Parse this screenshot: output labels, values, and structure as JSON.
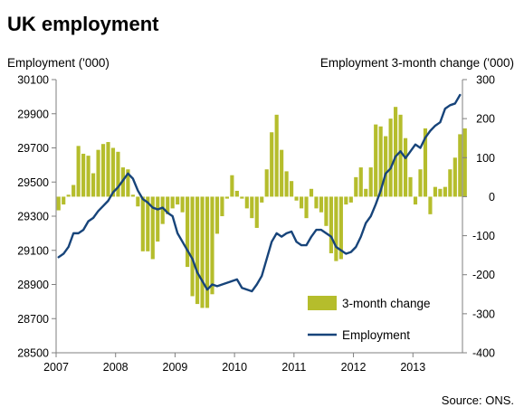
{
  "title": "UK employment",
  "source": "Source: ONS.",
  "colors": {
    "bar": "#b5bd2c",
    "line": "#17447a",
    "axis": "#7f7f7f"
  },
  "chart_data": {
    "type": "bar+line",
    "title": "UK employment",
    "ylabel_left": "Employment ('000)",
    "ylabel_right": "Employment 3-month change ('000)",
    "ylim_left": [
      28500,
      30100
    ],
    "ylim_right": [
      -400,
      300
    ],
    "yticks_left": [
      30100,
      29900,
      29700,
      29500,
      29300,
      29100,
      28900,
      28700,
      28500
    ],
    "yticks_right": [
      300,
      200,
      100,
      0,
      -100,
      -200,
      -300,
      -400
    ],
    "xlim": [
      2007,
      2013.833
    ],
    "xticks": [
      2007,
      2008,
      2009,
      2010,
      2011,
      2012,
      2013
    ],
    "xtick_labels": [
      "2007",
      "2008",
      "2009",
      "2010",
      "2011",
      "2012",
      "2013"
    ],
    "grid": false,
    "legend_position": "bottom-right",
    "start": "2007-01",
    "series": [
      {
        "name": "3-month change",
        "type": "bar",
        "axis": "right",
        "values": [
          -35,
          -20,
          5,
          30,
          130,
          110,
          105,
          60,
          120,
          135,
          140,
          125,
          115,
          75,
          70,
          5,
          -25,
          -140,
          -140,
          -160,
          -115,
          -70,
          -45,
          -30,
          -20,
          -40,
          -180,
          -255,
          -275,
          -285,
          -285,
          -250,
          -95,
          -50,
          -5,
          55,
          15,
          -5,
          -30,
          -55,
          -80,
          -15,
          70,
          165,
          210,
          120,
          65,
          40,
          -10,
          -30,
          -55,
          20,
          -30,
          -40,
          -75,
          -145,
          -165,
          -160,
          -20,
          -15,
          50,
          75,
          20,
          75,
          185,
          180,
          155,
          200,
          230,
          210,
          150,
          50,
          -20,
          70,
          175,
          -45,
          25,
          20,
          25,
          70,
          100,
          160,
          175
        ],
        "notes": "monthly bars, one value per month from Jan 2007 to Nov 2013"
      },
      {
        "name": "Employment",
        "type": "line",
        "axis": "left",
        "values": [
          29060,
          29080,
          29120,
          29200,
          29200,
          29220,
          29270,
          29290,
          29330,
          29360,
          29390,
          29440,
          29470,
          29510,
          29550,
          29520,
          29450,
          29400,
          29380,
          29350,
          29340,
          29350,
          29320,
          29300,
          29200,
          29150,
          29100,
          29050,
          28970,
          28920,
          28870,
          28900,
          28890,
          28900,
          28910,
          28920,
          28930,
          28880,
          28870,
          28860,
          28900,
          28950,
          29050,
          29150,
          29200,
          29180,
          29200,
          29210,
          29150,
          29130,
          29130,
          29180,
          29220,
          29220,
          29200,
          29180,
          29120,
          29100,
          29080,
          29090,
          29120,
          29180,
          29260,
          29300,
          29370,
          29450,
          29550,
          29580,
          29650,
          29680,
          29640,
          29680,
          29720,
          29700,
          29760,
          29800,
          29830,
          29850,
          29930,
          29950,
          29960,
          30010
        ]
      }
    ]
  }
}
